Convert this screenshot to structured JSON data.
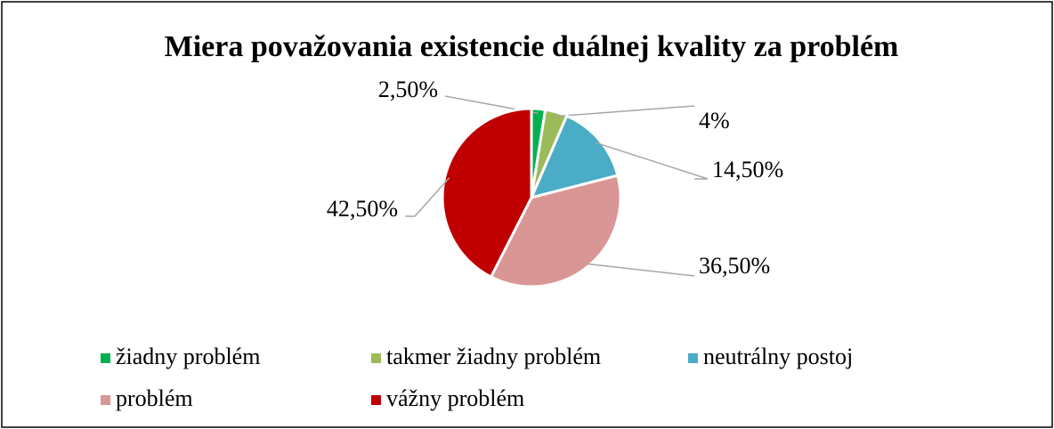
{
  "chart_data": {
    "type": "pie",
    "title": "Miera považovania existencie duálnej kvality za problém",
    "categories": [
      "žiadny problém",
      "takmer žiadny problém",
      "neutrálny postoj",
      "problém",
      "vážny problém"
    ],
    "values": [
      2.5,
      4,
      14.5,
      36.5,
      42.5
    ],
    "value_labels": [
      "2,50%",
      "4%",
      "14,50%",
      "36,50%",
      "42,50%"
    ],
    "colors": [
      "#00b050",
      "#9bbb59",
      "#4bacc6",
      "#d99694",
      "#c00000"
    ],
    "legend": "bottom"
  }
}
